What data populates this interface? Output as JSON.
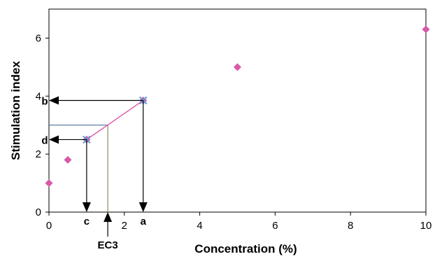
{
  "chart_data": {
    "type": "scatter",
    "xlabel": "Concentration (%)",
    "ylabel": "Stimulation index",
    "xlim": [
      0,
      10
    ],
    "ylim": [
      0,
      7
    ],
    "xticks": [
      "0",
      "2",
      "4",
      "6",
      "8",
      "10"
    ],
    "yticks": [
      "0",
      "2",
      "4",
      "6"
    ],
    "grid": false,
    "marker_color": "#d75aa8",
    "points": [
      {
        "x": 0,
        "y": 1.0
      },
      {
        "x": 0.5,
        "y": 1.8
      },
      {
        "x": 1,
        "y": 2.5
      },
      {
        "x": 2.5,
        "y": 3.85
      },
      {
        "x": 5,
        "y": 5.0
      },
      {
        "x": 10,
        "y": 6.3
      }
    ],
    "highlighted_points": [
      {
        "x": 1,
        "y": 2.5,
        "color": "#5b9bd5"
      },
      {
        "x": 2.5,
        "y": 3.85,
        "color": "#5b9bd5"
      }
    ],
    "interpolation": {
      "from": {
        "x": 1,
        "y": 2.5
      },
      "to": {
        "x": 2.5,
        "y": 3.85
      },
      "color": "#e0409a",
      "threshold_y": 3.0,
      "ec3_x": 1.56
    },
    "annotations": {
      "a": "a",
      "b": "b",
      "c": "c",
      "d": "d",
      "ec3": "EC3"
    }
  }
}
